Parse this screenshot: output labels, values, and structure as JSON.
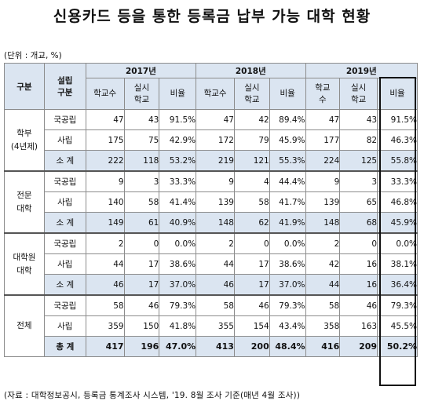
{
  "title": "신용카드 등을 통한 등록금 납부 가능 대학 현황",
  "unit": "(단위 : 개교, %)",
  "source": "(자료 : 대학정보공시, 등록금 통계조사 시스템, '19. 8월 조사 기준(매년 4월 조사))",
  "header": {
    "group": "구분",
    "type": "설립\n구분",
    "years": [
      "2017년",
      "2018년",
      "2019년"
    ],
    "cols_2017": [
      "학교수",
      "실시\n학교",
      "비율"
    ],
    "cols_2018": [
      "학교수",
      "실시\n학교",
      "비율"
    ],
    "cols_2019": [
      "학교\n수",
      "실시\n학교",
      "비율"
    ]
  },
  "groups": [
    {
      "name": "학부\n(4년제)",
      "rows": [
        {
          "type": "국공립",
          "v": [
            "47",
            "43",
            "91.5%",
            "47",
            "42",
            "89.4%",
            "47",
            "43",
            "91.5%"
          ]
        },
        {
          "type": "사립",
          "v": [
            "175",
            "75",
            "42.9%",
            "172",
            "79",
            "45.9%",
            "177",
            "82",
            "46.3%"
          ]
        },
        {
          "type": "소 계",
          "v": [
            "222",
            "118",
            "53.2%",
            "219",
            "121",
            "55.3%",
            "224",
            "125",
            "55.8%"
          ]
        }
      ]
    },
    {
      "name": "전문\n대학",
      "rows": [
        {
          "type": "국공립",
          "v": [
            "9",
            "3",
            "33.3%",
            "9",
            "4",
            "44.4%",
            "9",
            "3",
            "33.3%"
          ]
        },
        {
          "type": "사립",
          "v": [
            "140",
            "58",
            "41.4%",
            "139",
            "58",
            "41.7%",
            "139",
            "65",
            "46.8%"
          ]
        },
        {
          "type": "소 계",
          "v": [
            "149",
            "61",
            "40.9%",
            "148",
            "62",
            "41.9%",
            "148",
            "68",
            "45.9%"
          ]
        }
      ]
    },
    {
      "name": "대학원\n대학",
      "rows": [
        {
          "type": "국공립",
          "v": [
            "2",
            "0",
            "0.0%",
            "2",
            "0",
            "0.0%",
            "2",
            "0",
            "0.0%"
          ]
        },
        {
          "type": "사립",
          "v": [
            "44",
            "17",
            "38.6%",
            "44",
            "17",
            "38.6%",
            "42",
            "16",
            "38.1%"
          ]
        },
        {
          "type": "소 계",
          "v": [
            "46",
            "17",
            "37.0%",
            "46",
            "17",
            "37.0%",
            "44",
            "16",
            "36.4%"
          ]
        }
      ]
    },
    {
      "name": "전체",
      "rows": [
        {
          "type": "국공립",
          "v": [
            "58",
            "46",
            "79.3%",
            "58",
            "46",
            "79.3%",
            "58",
            "46",
            "79.3%"
          ]
        },
        {
          "type": "사립",
          "v": [
            "359",
            "150",
            "41.8%",
            "355",
            "154",
            "43.4%",
            "358",
            "163",
            "45.5%"
          ]
        },
        {
          "type": "총 계",
          "v": [
            "417",
            "196",
            "47.0%",
            "413",
            "200",
            "48.4%",
            "416",
            "209",
            "50.2%"
          ]
        }
      ]
    }
  ]
}
